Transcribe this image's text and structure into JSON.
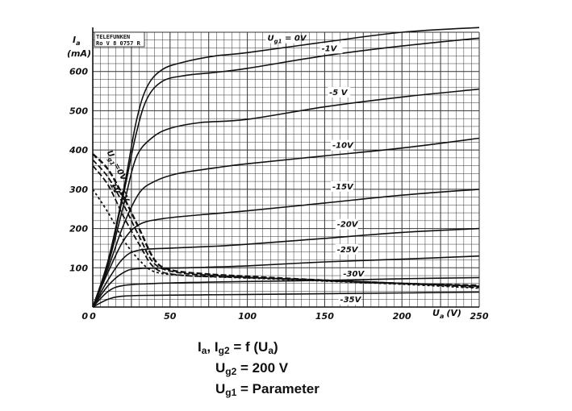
{
  "chart_data": {
    "type": "line",
    "maker_label": [
      "TELEFUNKEN",
      "Ro V 8 0757 R"
    ],
    "ylabel": "I",
    "ylabel_sub": "a",
    "yunit": "(mA)",
    "xlabel": "U",
    "xlabel_sub": "a",
    "xunit": "(V)",
    "xlim": [
      0,
      250
    ],
    "ylim": [
      0,
      700
    ],
    "grid": true,
    "x_ticks": [
      {
        "value": 0,
        "label": "0"
      },
      {
        "value": 50,
        "label": "50"
      },
      {
        "value": 100,
        "label": "100"
      },
      {
        "value": 150,
        "label": "150"
      },
      {
        "value": 200,
        "label": "200"
      },
      {
        "value": 250,
        "label": "250"
      }
    ],
    "y_ticks": [
      {
        "value": 100,
        "label": "100"
      },
      {
        "value": 200,
        "label": "200"
      },
      {
        "value": 300,
        "label": "300"
      },
      {
        "value": 400,
        "label": "400"
      },
      {
        "value": 500,
        "label": "500"
      },
      {
        "value": 600,
        "label": "600"
      }
    ],
    "anode_series": [
      {
        "label": "U",
        "label_sub": "g1",
        "label_rest": " = 0V",
        "label_at": [
          113,
          678
        ],
        "points": [
          [
            0,
            0
          ],
          [
            10,
            120
          ],
          [
            20,
            300
          ],
          [
            28,
            470
          ],
          [
            35,
            560
          ],
          [
            45,
            605
          ],
          [
            60,
            625
          ],
          [
            80,
            640
          ],
          [
            100,
            648
          ],
          [
            150,
            675
          ],
          [
            200,
            700
          ],
          [
            250,
            712
          ]
        ]
      },
      {
        "label": "-1V",
        "label_at": [
          148,
          652
        ],
        "points": [
          [
            0,
            0
          ],
          [
            10,
            115
          ],
          [
            20,
            290
          ],
          [
            28,
            440
          ],
          [
            35,
            530
          ],
          [
            45,
            575
          ],
          [
            60,
            590
          ],
          [
            80,
            598
          ],
          [
            100,
            608
          ],
          [
            150,
            640
          ],
          [
            200,
            665
          ],
          [
            250,
            685
          ]
        ]
      },
      {
        "label": "-5 V",
        "label_at": [
          153,
          540
        ],
        "points": [
          [
            0,
            0
          ],
          [
            10,
            110
          ],
          [
            20,
            260
          ],
          [
            28,
            380
          ],
          [
            38,
            430
          ],
          [
            50,
            455
          ],
          [
            70,
            470
          ],
          [
            100,
            478
          ],
          [
            150,
            510
          ],
          [
            200,
            535
          ],
          [
            250,
            555
          ]
        ]
      },
      {
        "label": "-10V",
        "label_at": [
          155,
          405
        ],
        "points": [
          [
            0,
            0
          ],
          [
            10,
            100
          ],
          [
            20,
            210
          ],
          [
            30,
            290
          ],
          [
            40,
            320
          ],
          [
            55,
            340
          ],
          [
            80,
            355
          ],
          [
            100,
            365
          ],
          [
            150,
            385
          ],
          [
            200,
            405
          ],
          [
            250,
            430
          ]
        ]
      },
      {
        "label": "-15V",
        "label_at": [
          155,
          300
        ],
        "points": [
          [
            0,
            0
          ],
          [
            10,
            90
          ],
          [
            20,
            170
          ],
          [
            30,
            210
          ],
          [
            45,
            225
          ],
          [
            70,
            235
          ],
          [
            100,
            245
          ],
          [
            150,
            265
          ],
          [
            200,
            285
          ],
          [
            250,
            300
          ]
        ]
      },
      {
        "label": "-20V",
        "label_at": [
          158,
          204
        ],
        "points": [
          [
            0,
            0
          ],
          [
            10,
            70
          ],
          [
            20,
            125
          ],
          [
            30,
            145
          ],
          [
            50,
            150
          ],
          [
            80,
            155
          ],
          [
            100,
            160
          ],
          [
            150,
            175
          ],
          [
            200,
            190
          ],
          [
            250,
            200
          ]
        ]
      },
      {
        "label": "-25V",
        "label_at": [
          158,
          140
        ],
        "points": [
          [
            0,
            0
          ],
          [
            10,
            55
          ],
          [
            20,
            88
          ],
          [
            30,
            98
          ],
          [
            60,
            100
          ],
          [
            100,
            105
          ],
          [
            150,
            115
          ],
          [
            200,
            122
          ],
          [
            250,
            130
          ]
        ]
      },
      {
        "label": "-30V",
        "label_at": [
          162,
          78
        ],
        "points": [
          [
            0,
            0
          ],
          [
            10,
            40
          ],
          [
            20,
            55
          ],
          [
            40,
            60
          ],
          [
            70,
            63
          ],
          [
            100,
            65
          ],
          [
            150,
            68
          ],
          [
            200,
            72
          ],
          [
            250,
            75
          ]
        ]
      },
      {
        "label": "-35V",
        "label_at": [
          160,
          12
        ],
        "points": [
          [
            0,
            0
          ],
          [
            10,
            20
          ],
          [
            20,
            28
          ],
          [
            40,
            30
          ],
          [
            70,
            31
          ],
          [
            100,
            32
          ],
          [
            150,
            34
          ],
          [
            200,
            36
          ],
          [
            250,
            38
          ]
        ]
      }
    ],
    "screen_series": [
      {
        "points": [
          [
            0,
            390
          ],
          [
            10,
            350
          ],
          [
            20,
            280
          ],
          [
            30,
            200
          ],
          [
            40,
            120
          ],
          [
            50,
            95
          ],
          [
            70,
            85
          ],
          [
            100,
            78
          ],
          [
            150,
            68
          ],
          [
            200,
            60
          ],
          [
            250,
            55
          ]
        ]
      },
      {
        "points": [
          [
            0,
            375
          ],
          [
            10,
            330
          ],
          [
            20,
            260
          ],
          [
            30,
            180
          ],
          [
            40,
            110
          ],
          [
            55,
            88
          ],
          [
            80,
            80
          ],
          [
            120,
            72
          ],
          [
            170,
            64
          ],
          [
            220,
            58
          ],
          [
            250,
            53
          ]
        ]
      },
      {
        "points": [
          [
            0,
            360
          ],
          [
            10,
            310
          ],
          [
            20,
            230
          ],
          [
            30,
            160
          ],
          [
            40,
            100
          ],
          [
            55,
            82
          ],
          [
            90,
            76
          ],
          [
            140,
            70
          ],
          [
            190,
            62
          ],
          [
            250,
            50
          ]
        ]
      },
      {
        "points": [
          [
            0,
            300
          ],
          [
            10,
            240
          ],
          [
            20,
            170
          ],
          [
            30,
            120
          ],
          [
            40,
            90
          ],
          [
            60,
            80
          ],
          [
            100,
            74
          ],
          [
            150,
            66
          ],
          [
            200,
            58
          ],
          [
            250,
            48
          ]
        ]
      }
    ],
    "screen_labels": [
      {
        "text": "U",
        "sub": "g1",
        "rest": "=0V",
        "at": [
          9,
          395
        ],
        "angle": -58
      },
      {
        "text": "-1V",
        "at": [
          10,
          320
        ],
        "angle": -58
      },
      {
        "text": "-5V",
        "at": [
          16,
          300
        ],
        "angle": -58
      }
    ],
    "caption": {
      "line1": {
        "a": "I",
        "a_sub": "a",
        "sep": ", ",
        "b": "I",
        "b_sub": "g2",
        "rest": " = f (U",
        "c_sub": "a",
        "end": ")"
      },
      "line2": {
        "a": "U",
        "a_sub": "g2",
        "rest": " = 200 V"
      },
      "line3": {
        "a": "U",
        "a_sub": "g1",
        "rest": " = Parameter"
      }
    },
    "colors": {
      "ink": "#111111",
      "grid": "#333333",
      "background": "#ffffff"
    }
  }
}
